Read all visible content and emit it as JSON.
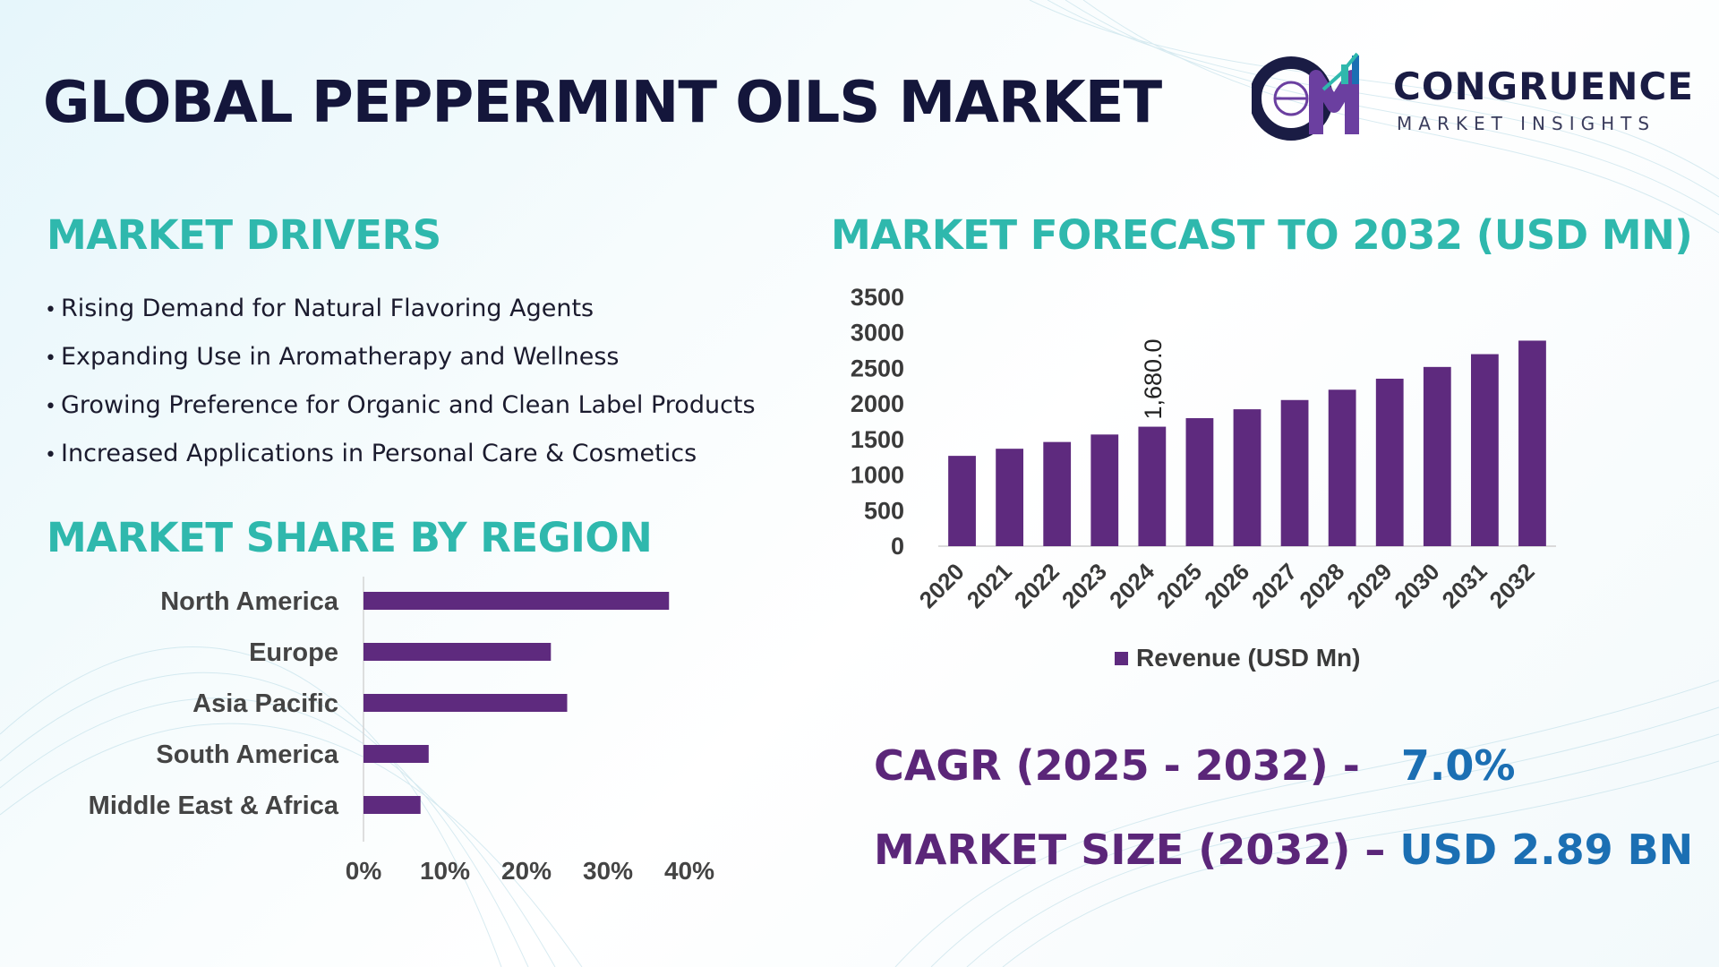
{
  "page": {
    "title": "GLOBAL PEPPERMINT OILS MARKET",
    "logo": {
      "monogram": "CM",
      "name": "CONGRUENCE",
      "tagline": "MARKET INSIGHTS"
    }
  },
  "drivers": {
    "heading": "MARKET DRIVERS",
    "items": [
      "Rising Demand for Natural Flavoring Agents",
      "Expanding Use in Aromatherapy and Wellness",
      "Growing Preference for Organic and Clean Label Products",
      "Increased Applications in Personal Care & Cosmetics"
    ]
  },
  "region": {
    "heading": "MARKET SHARE BY REGION"
  },
  "forecast": {
    "heading": "MARKET FORECAST TO 2032 (USD MN)"
  },
  "kpis": {
    "cagr_label": "CAGR (2025 - 2032) -",
    "cagr_value": "7.0%",
    "size_label": "MARKET SIZE (2032) –",
    "size_value": "USD 2.89 BN"
  },
  "colors": {
    "bar": "#5e2a7e",
    "section_title": "#2fb8ad",
    "kpi_label": "#5b2679",
    "kpi_value": "#1b6fb3",
    "title": "#14163b"
  },
  "chart_data": [
    {
      "type": "bar",
      "orientation": "vertical",
      "categories": [
        "2020",
        "2021",
        "2022",
        "2023",
        "2024",
        "2025",
        "2026",
        "2027",
        "2028",
        "2029",
        "2030",
        "2031",
        "2032"
      ],
      "series": [
        {
          "name": "Revenue (USD Mn)",
          "values": [
            1270,
            1370,
            1465,
            1570,
            1680,
            1800,
            1925,
            2055,
            2200,
            2355,
            2520,
            2700,
            2890
          ]
        }
      ],
      "data_labels": [
        {
          "index": 4,
          "text": "1,680.0"
        }
      ],
      "ylim": [
        0,
        3500
      ],
      "yticks": [
        0,
        500,
        1000,
        1500,
        2000,
        2500,
        3000,
        3500
      ],
      "legend": "bottom",
      "grid": false
    },
    {
      "type": "bar",
      "orientation": "horizontal",
      "categories": [
        "North America",
        "Europe",
        "Asia Pacific",
        "South America",
        "Middle East & Africa"
      ],
      "values": [
        37.5,
        23,
        25,
        8,
        7
      ],
      "xlim": [
        0,
        40
      ],
      "xticks": [
        "0%",
        "10%",
        "20%",
        "30%",
        "40%"
      ],
      "grid": false
    }
  ]
}
